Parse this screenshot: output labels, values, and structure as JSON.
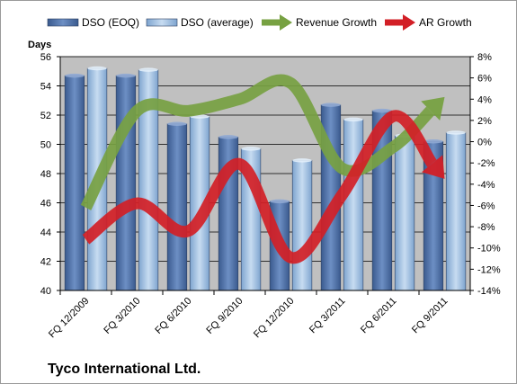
{
  "chart_data": {
    "type": "bar",
    "company": "Tyco International Ltd.",
    "ylabel_left": "Days",
    "categories": [
      "FQ 12/2009",
      "FQ 3/2010",
      "FQ 6/2010",
      "FQ 9/2010",
      "FQ 12/2010",
      "FQ 3/2011",
      "FQ 6/2011",
      "FQ 9/2011"
    ],
    "ylim_left": [
      40,
      56
    ],
    "yticks_left": [
      40,
      42,
      44,
      46,
      48,
      50,
      52,
      54,
      56
    ],
    "ylim_right": [
      -14,
      8
    ],
    "yticks_right": [
      "-14%",
      "-12%",
      "-10%",
      "-8%",
      "-6%",
      "-4%",
      "-2%",
      "0%",
      "2%",
      "4%",
      "6%",
      "8%"
    ],
    "series": [
      {
        "name": "DSO (EOQ)",
        "kind": "bar",
        "axis": "left",
        "color": "#4f6fa3",
        "values": [
          54.7,
          54.7,
          51.4,
          50.5,
          46.1,
          52.7,
          52.3,
          50.2
        ]
      },
      {
        "name": "DSO (average)",
        "kind": "bar",
        "axis": "left",
        "color": "#9cbde0",
        "values": [
          55.2,
          55.1,
          51.9,
          49.7,
          48.9,
          51.7,
          50.6,
          50.8
        ]
      },
      {
        "name": "Revenue Growth",
        "kind": "line-arrow",
        "axis": "right",
        "color": "#77a142",
        "values": [
          -6.2,
          2.9,
          2.9,
          4.0,
          5.5,
          -2.5,
          -0.5,
          4.2
        ]
      },
      {
        "name": "AR Growth",
        "kind": "line-arrow",
        "axis": "right",
        "color": "#d21f26",
        "values": [
          -9.2,
          -5.8,
          -8.4,
          -2.1,
          -10.9,
          -5.0,
          2.4,
          -3.5
        ]
      }
    ],
    "legend_position": "top",
    "grid": true,
    "plot_background": "#c0c0c0"
  }
}
